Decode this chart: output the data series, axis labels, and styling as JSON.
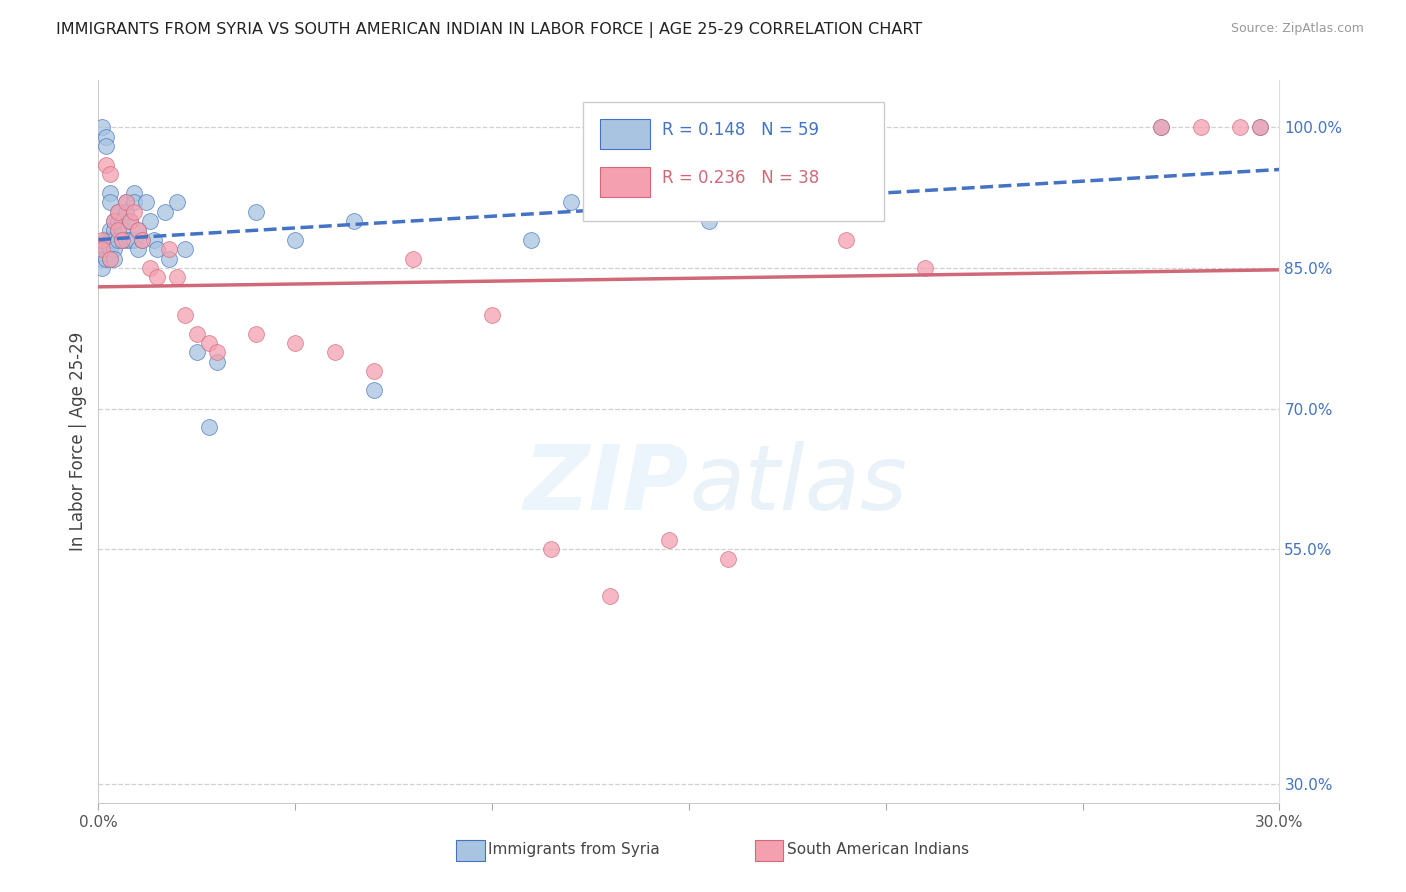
{
  "title": "IMMIGRANTS FROM SYRIA VS SOUTH AMERICAN INDIAN IN LABOR FORCE | AGE 25-29 CORRELATION CHART",
  "source": "Source: ZipAtlas.com",
  "ylabel": "In Labor Force | Age 25-29",
  "r_syria": 0.148,
  "n_syria": 59,
  "r_sam_indian": 0.236,
  "n_sam_indian": 38,
  "color_syria": "#a8c4e0",
  "color_sam_indian": "#f4a0b0",
  "line_color_syria": "#4472c4",
  "line_color_sam_indian": "#d06878",
  "xlim": [
    0.0,
    0.3
  ],
  "ylim": [
    0.28,
    1.05
  ],
  "xticks": [
    0.0,
    0.05,
    0.1,
    0.15,
    0.2,
    0.25,
    0.3
  ],
  "xtick_labels": [
    "0.0%",
    "",
    "",
    "",
    "",
    "",
    "30.0%"
  ],
  "yticks_right": [
    0.3,
    0.55,
    0.7,
    0.85,
    1.0
  ],
  "ytick_right_labels": [
    "30.0%",
    "55.0%",
    "70.0%",
    "85.0%",
    "100.0%"
  ],
  "syria_x": [
    0.001,
    0.001,
    0.001,
    0.001,
    0.002,
    0.002,
    0.002,
    0.002,
    0.002,
    0.003,
    0.003,
    0.003,
    0.003,
    0.003,
    0.003,
    0.004,
    0.004,
    0.004,
    0.004,
    0.004,
    0.005,
    0.005,
    0.005,
    0.005,
    0.006,
    0.006,
    0.006,
    0.007,
    0.007,
    0.007,
    0.008,
    0.008,
    0.009,
    0.009,
    0.009,
    0.01,
    0.01,
    0.011,
    0.012,
    0.013,
    0.014,
    0.015,
    0.017,
    0.018,
    0.02,
    0.022,
    0.025,
    0.028,
    0.03,
    0.04,
    0.05,
    0.065,
    0.07,
    0.11,
    0.12,
    0.145,
    0.155,
    0.27,
    0.295
  ],
  "syria_y": [
    0.87,
    0.86,
    0.85,
    1.0,
    0.99,
    0.98,
    0.88,
    0.87,
    0.86,
    0.89,
    0.88,
    0.87,
    0.86,
    0.93,
    0.92,
    0.9,
    0.89,
    0.88,
    0.87,
    0.86,
    0.91,
    0.9,
    0.89,
    0.88,
    0.9,
    0.89,
    0.88,
    0.92,
    0.91,
    0.88,
    0.9,
    0.88,
    0.93,
    0.92,
    0.88,
    0.89,
    0.87,
    0.88,
    0.92,
    0.9,
    0.88,
    0.87,
    0.91,
    0.86,
    0.92,
    0.87,
    0.76,
    0.68,
    0.75,
    0.91,
    0.88,
    0.9,
    0.72,
    0.88,
    0.92,
    0.91,
    0.9,
    1.0,
    1.0
  ],
  "sam_x": [
    0.001,
    0.001,
    0.002,
    0.003,
    0.003,
    0.004,
    0.005,
    0.005,
    0.006,
    0.007,
    0.008,
    0.009,
    0.01,
    0.011,
    0.013,
    0.015,
    0.018,
    0.02,
    0.022,
    0.025,
    0.028,
    0.03,
    0.04,
    0.05,
    0.06,
    0.07,
    0.08,
    0.1,
    0.115,
    0.13,
    0.145,
    0.16,
    0.19,
    0.21,
    0.27,
    0.28,
    0.29,
    0.295
  ],
  "sam_y": [
    0.88,
    0.87,
    0.96,
    0.95,
    0.86,
    0.9,
    0.91,
    0.89,
    0.88,
    0.92,
    0.9,
    0.91,
    0.89,
    0.88,
    0.85,
    0.84,
    0.87,
    0.84,
    0.8,
    0.78,
    0.77,
    0.76,
    0.78,
    0.77,
    0.76,
    0.74,
    0.86,
    0.8,
    0.55,
    0.5,
    0.56,
    0.54,
    0.88,
    0.85,
    1.0,
    1.0,
    1.0,
    1.0
  ]
}
